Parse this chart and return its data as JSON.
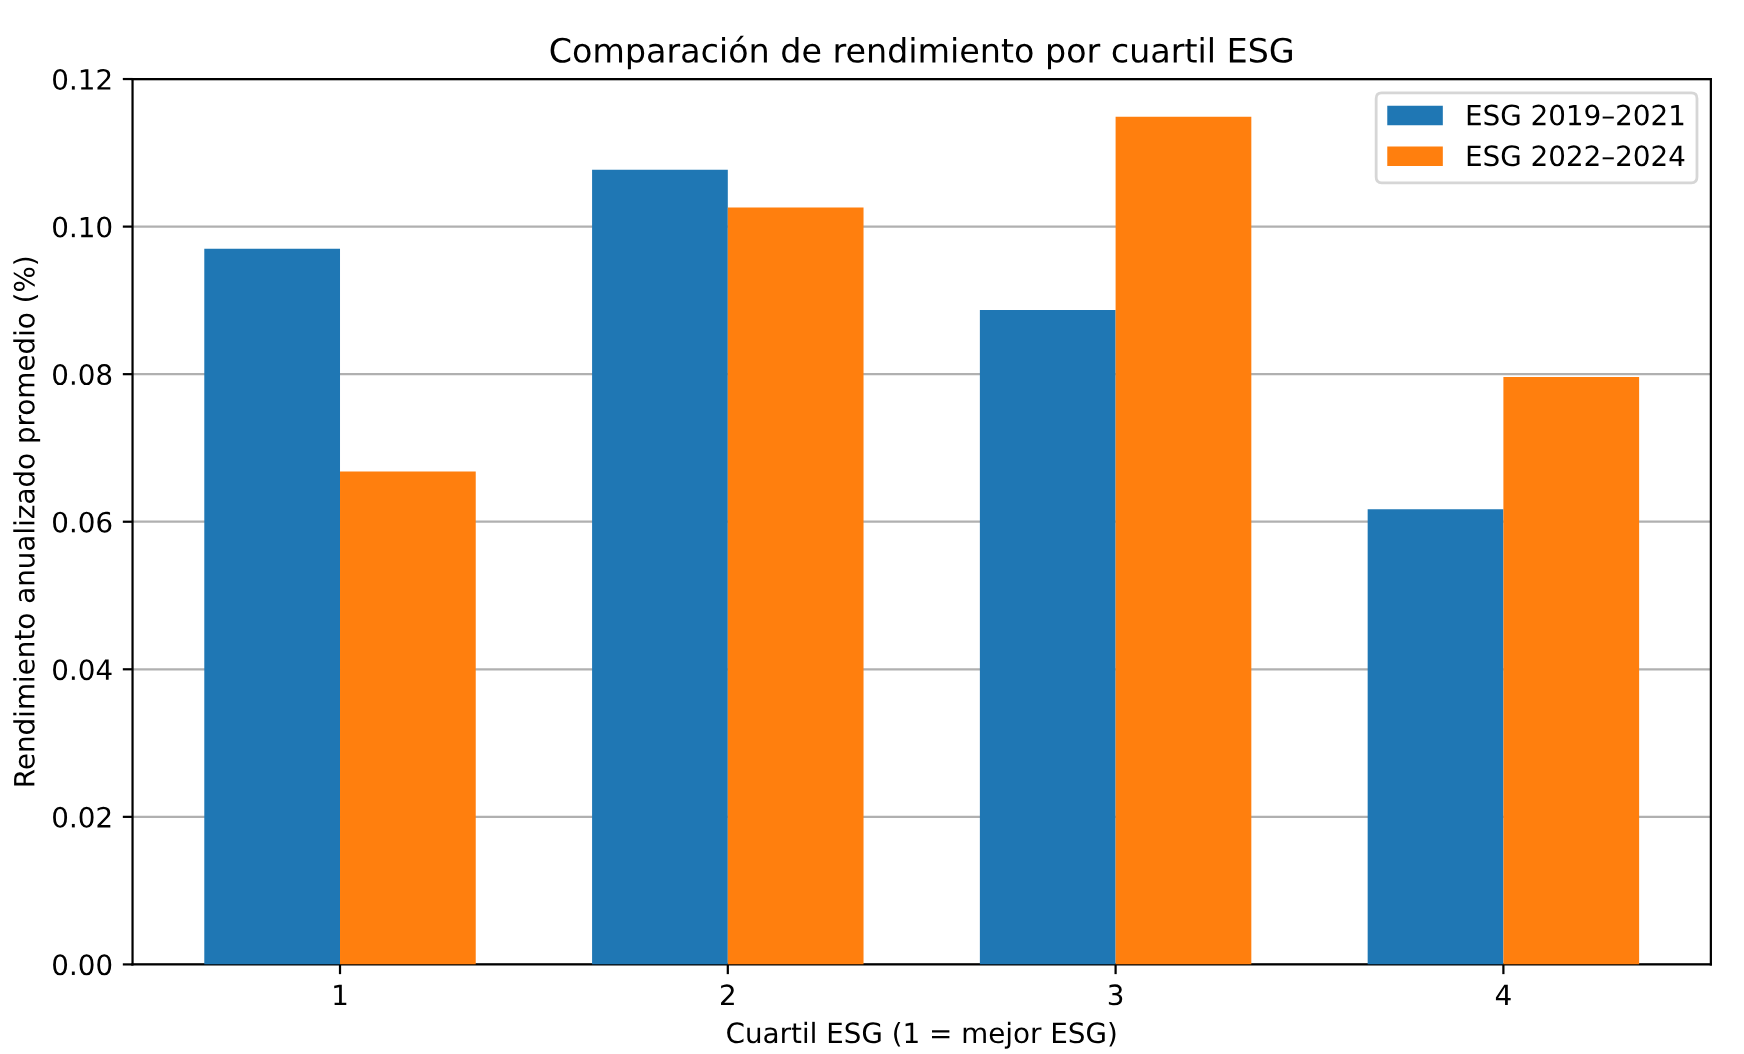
{
  "chart_data": {
    "type": "bar",
    "title": "Comparación de rendimiento por cuartil ESG",
    "xlabel": "Cuartil ESG (1 = mejor ESG)",
    "ylabel": "Rendimiento anualizado promedio (%)",
    "categories": [
      "1",
      "2",
      "3",
      "4"
    ],
    "series": [
      {
        "name": "ESG 2019–2021",
        "color": "#1f77b4",
        "values": [
          0.097,
          0.1077,
          0.0887,
          0.0617
        ]
      },
      {
        "name": "ESG 2022–2024",
        "color": "#ff7f0e",
        "values": [
          0.0668,
          0.1026,
          0.1149,
          0.0796
        ]
      }
    ],
    "ylim": [
      0,
      0.12
    ],
    "yticks": [
      {
        "value": 0,
        "label": "0.00"
      },
      {
        "value": 0.02,
        "label": "0.02"
      },
      {
        "value": 0.04,
        "label": "0.04"
      },
      {
        "value": 0.06,
        "label": "0.06"
      },
      {
        "value": 0.08,
        "label": "0.08"
      },
      {
        "value": 0.1,
        "label": "0.10"
      },
      {
        "value": 0.12,
        "label": "0.12"
      }
    ],
    "grid": "y",
    "legend": "top right"
  }
}
